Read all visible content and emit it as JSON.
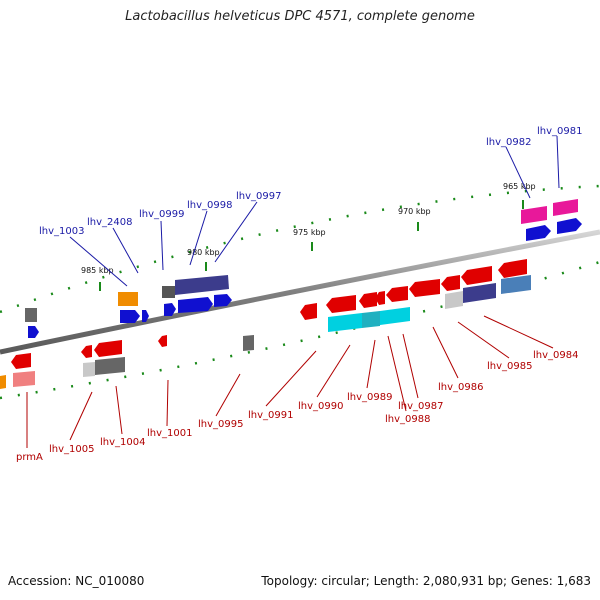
{
  "title": "Lactobacillus helveticus DPC 4571, complete genome",
  "footer": {
    "accession": "Accession: NC_010080",
    "summary": "Topology: circular; Length: 2,080,931 bp; Genes: 1,683"
  },
  "scale_labels": [
    "985 kbp",
    "980 kbp",
    "975 kbp",
    "970 kbp",
    "965 kbp"
  ],
  "colors": {
    "backbone": "#8c8c8c",
    "label_blue": "#1a1aa6",
    "label_red": "#b00000",
    "tick_green": "#1a8a1a"
  },
  "labels_top": [
    "lhv_1003",
    "lhv_2408",
    "lhv_0999",
    "lhv_0998",
    "lhv_0997",
    "lhv_0982",
    "lhv_0981"
  ],
  "labels_bottom": [
    "prmA",
    "lhv_1005",
    "lhv_1004",
    "lhv_1001",
    "lhv_0995",
    "lhv_0991",
    "lhv_0990",
    "lhv_0989",
    "lhv_0988",
    "lhv_0987",
    "lhv_0986",
    "lhv_0985",
    "lhv_0984"
  ]
}
